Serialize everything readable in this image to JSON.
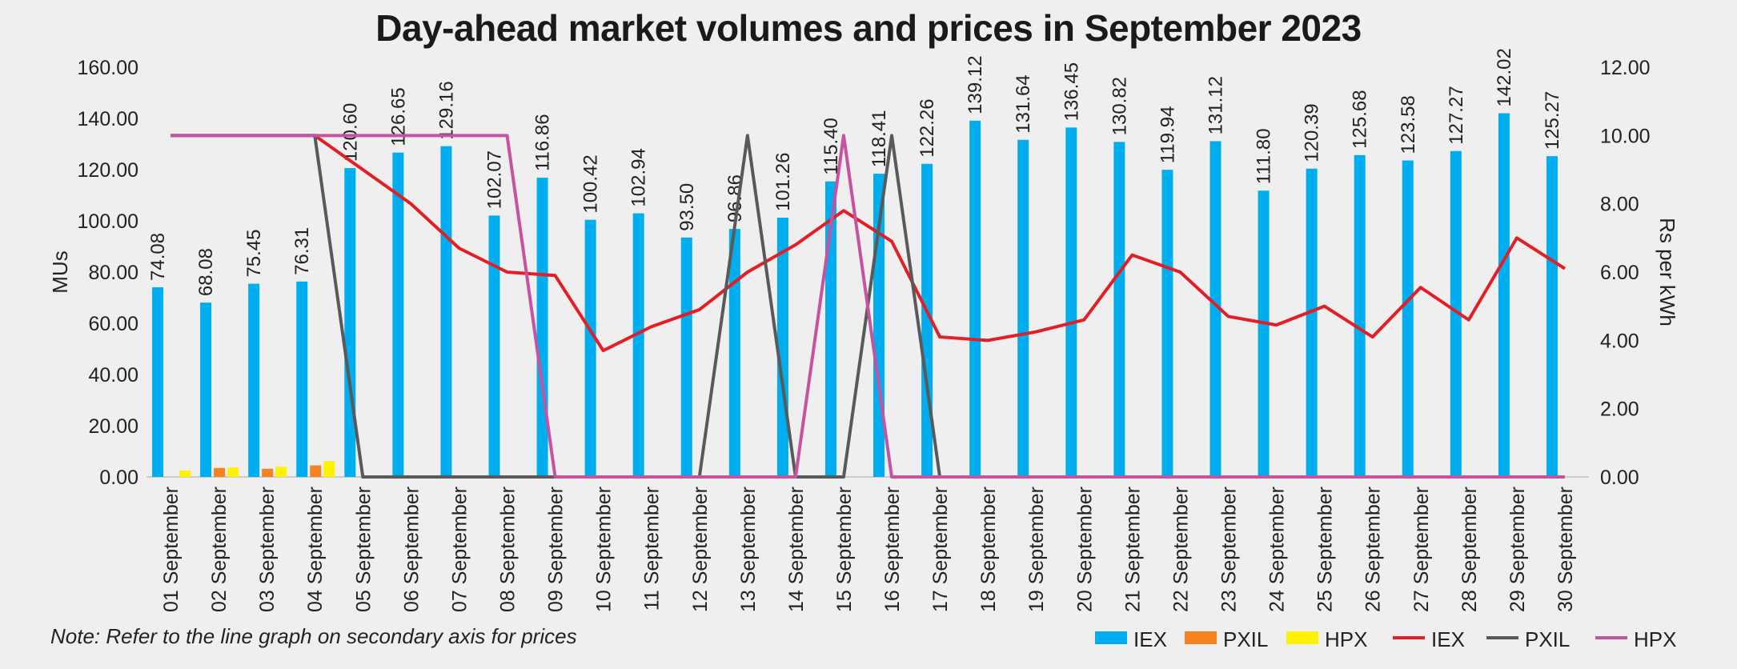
{
  "chart_data": {
    "type": "bar",
    "title": "Day-ahead market volumes and prices in September 2023",
    "ylabel": "MUs",
    "y2label": "Rs per kWh",
    "ylim": [
      0,
      160
    ],
    "y2lim": [
      0,
      12
    ],
    "yticks": [
      "0.00",
      "20.00",
      "40.00",
      "60.00",
      "80.00",
      "100.00",
      "120.00",
      "140.00",
      "160.00"
    ],
    "y2ticks": [
      "0.00",
      "2.00",
      "4.00",
      "6.00",
      "8.00",
      "10.00",
      "12.00"
    ],
    "categories": [
      "01 September",
      "02 September",
      "03 September",
      "04 September",
      "05 September",
      "06 September",
      "07 September",
      "08 September",
      "09 September",
      "10 September",
      "11 September",
      "12 September",
      "13 September",
      "14 September",
      "15 September",
      "16 September",
      "17 September",
      "18 September",
      "19 September",
      "20 September",
      "21 September",
      "22 September",
      "23 September",
      "24 September",
      "25 September",
      "26 September",
      "27 September",
      "28 September",
      "29 September",
      "30 September"
    ],
    "bar_series": [
      {
        "name": "IEX",
        "color": "#00adef",
        "values": [
          74.08,
          68.08,
          75.45,
          76.31,
          120.6,
          126.65,
          129.16,
          102.07,
          116.86,
          100.42,
          102.94,
          93.5,
          96.86,
          101.26,
          115.4,
          118.41,
          122.26,
          139.12,
          131.64,
          136.45,
          130.82,
          119.94,
          131.12,
          111.8,
          120.39,
          125.68,
          123.58,
          127.27,
          142.02,
          125.27
        ]
      },
      {
        "name": "PXIL",
        "color": "#f58220",
        "values": [
          0,
          3.5,
          3.2,
          4.5,
          0,
          0,
          0,
          0,
          0,
          0,
          0,
          0,
          0,
          0,
          0,
          0,
          0,
          0,
          0,
          0,
          0,
          0,
          0,
          0,
          0,
          0,
          0,
          0,
          0,
          0
        ]
      },
      {
        "name": "HPX",
        "color": "#fff200",
        "values": [
          2.5,
          3.7,
          4.0,
          6.2,
          0,
          0,
          0,
          0,
          0,
          0,
          0,
          0,
          0,
          0,
          0,
          0,
          0,
          0,
          0,
          0,
          0,
          0,
          0,
          0,
          0,
          0,
          0,
          0,
          0,
          0
        ]
      }
    ],
    "bar_labels": [
      "74.08",
      "68.08",
      "75.45",
      "76.31",
      "120.60",
      "126.65",
      "129.16",
      "102.07",
      "116.86",
      "100.42",
      "102.94",
      "93.50",
      "96.86",
      "101.26",
      "115.40",
      "118.41",
      "122.26",
      "139.12",
      "131.64",
      "136.45",
      "130.82",
      "119.94",
      "131.12",
      "111.80",
      "120.39",
      "125.68",
      "123.58",
      "127.27",
      "142.02",
      "125.27"
    ],
    "line_series": [
      {
        "name": "IEX",
        "color": "#e31e24",
        "values": [
          10,
          10,
          10,
          10,
          9.0,
          8.0,
          6.7,
          6.0,
          5.9,
          3.7,
          4.4,
          4.9,
          6.0,
          6.8,
          7.8,
          6.9,
          4.1,
          4.0,
          4.25,
          4.6,
          6.5,
          6.0,
          4.7,
          4.45,
          5.0,
          4.1,
          5.55,
          4.6,
          7.0,
          6.1
        ]
      },
      {
        "name": "PXIL",
        "color": "#595959",
        "values": [
          10,
          10,
          10,
          10,
          0,
          0,
          0,
          0,
          0,
          0,
          0,
          0,
          10,
          0,
          0,
          10,
          0,
          0,
          0,
          0,
          0,
          0,
          0,
          0,
          0,
          0,
          0,
          0,
          0,
          0
        ]
      },
      {
        "name": "HPX",
        "color": "#c6539f",
        "values": [
          10,
          10,
          10,
          10,
          10,
          10,
          10,
          10,
          0,
          0,
          0,
          0,
          0,
          0,
          10,
          0,
          0,
          0,
          0,
          0,
          0,
          0,
          0,
          0,
          0,
          0,
          0,
          0,
          0,
          0
        ]
      }
    ],
    "legend": [
      "IEX",
      "PXIL",
      "HPX",
      "IEX",
      "PXIL",
      "HPX"
    ],
    "legend_position": "bottom-right",
    "grid": false
  },
  "note": "Note: Refer to the line graph on secondary axis for prices"
}
